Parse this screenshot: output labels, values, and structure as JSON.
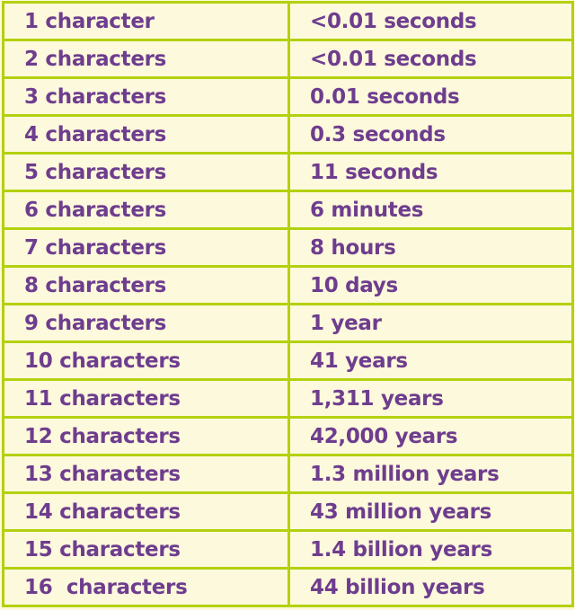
{
  "rows": [
    {
      "length": "1 character",
      "time": "<0.01 seconds"
    },
    {
      "length": "2 characters",
      "time": "<0.01 seconds"
    },
    {
      "length": "3 characters",
      "time": "0.01 seconds"
    },
    {
      "length": "4 characters",
      "time": "0.3 seconds"
    },
    {
      "length": "5 characters",
      "time": "11 seconds"
    },
    {
      "length": "6 characters",
      "time": "6 minutes"
    },
    {
      "length": "7 characters",
      "time": "8 hours"
    },
    {
      "length": "8 characters",
      "time": "10 days"
    },
    {
      "length": "9 characters",
      "time": "1 year"
    },
    {
      "length": "10 characters",
      "time": "41 years"
    },
    {
      "length": "11 characters",
      "time": "1,311 years"
    },
    {
      "length": "12 characters",
      "time": "42,000 years"
    },
    {
      "length": "13 characters",
      "time": "1.3 million years"
    },
    {
      "length": "14 characters",
      "time": "43 million years"
    },
    {
      "length": "15 characters",
      "time": "1.4 billion years"
    },
    {
      "length": "16  characters",
      "time": "44 billion years"
    }
  ],
  "colors": {
    "border": "#b3d10f",
    "background": "#fdf9dc",
    "text": "#6e3d8e"
  }
}
